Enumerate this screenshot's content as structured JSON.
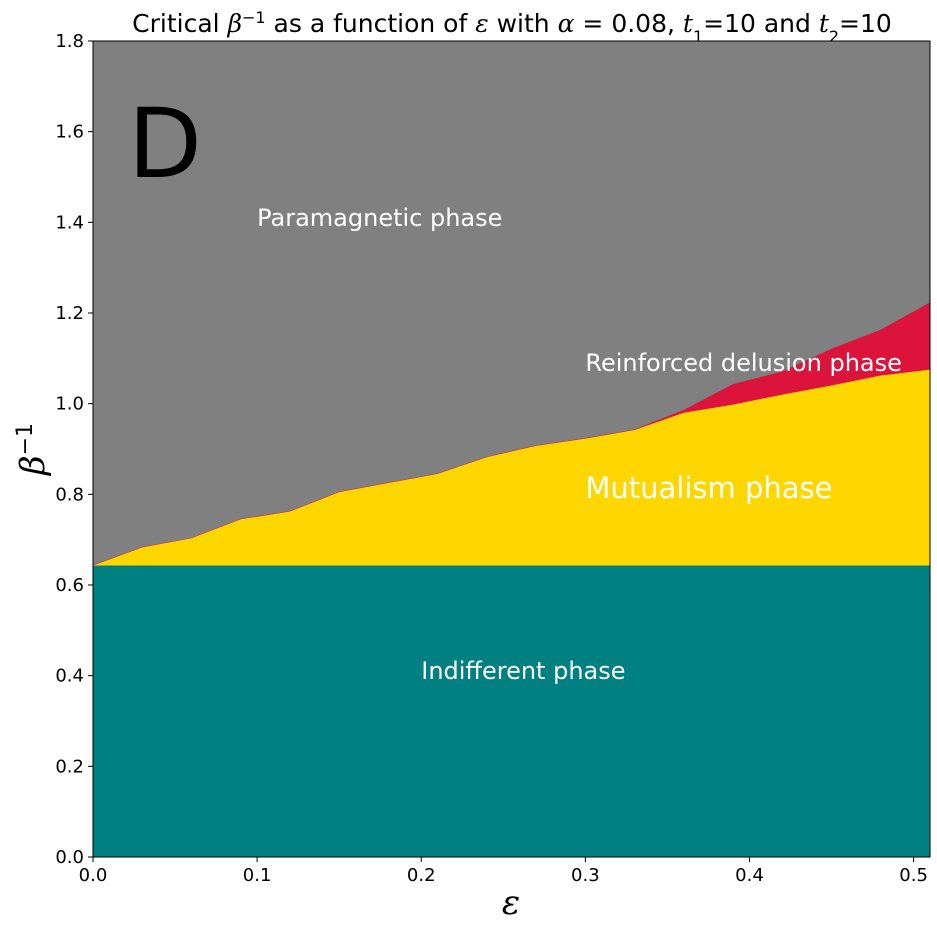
{
  "chart_data": {
    "type": "area",
    "title": "Critical β⁻¹ as a function of ε with α = 0.08, t₁=10 and t₂=10",
    "panel_label": "D",
    "xlabel": "ε",
    "ylabel": "β⁻¹",
    "xlim": [
      0.0,
      0.51
    ],
    "ylim": [
      0.0,
      1.8
    ],
    "xticks": [
      0.0,
      0.1,
      0.2,
      0.3,
      0.4,
      0.5
    ],
    "yticks": [
      0.0,
      0.2,
      0.4,
      0.6,
      0.8,
      1.0,
      1.2,
      1.4,
      1.6,
      1.8
    ],
    "xtick_labels": [
      "0.0",
      "0.1",
      "0.2",
      "0.3",
      "0.4",
      "0.5"
    ],
    "ytick_labels": [
      "0.0",
      "0.2",
      "0.4",
      "0.6",
      "0.8",
      "1.0",
      "1.2",
      "1.4",
      "1.6",
      "1.8"
    ],
    "grid": false,
    "series": [
      {
        "region": "indifferent",
        "color": "#008080",
        "x": [
          0.0,
          0.51
        ],
        "y_lower": [
          0.0,
          0.0
        ],
        "y_upper": [
          0.643,
          0.643
        ]
      },
      {
        "region": "mutualism",
        "color": "#FFD700",
        "x": [
          0.0,
          0.03,
          0.06,
          0.09,
          0.12,
          0.15,
          0.18,
          0.21,
          0.24,
          0.27,
          0.3,
          0.33,
          0.36,
          0.39,
          0.42,
          0.45,
          0.48,
          0.51
        ],
        "y_lower": [
          0.643,
          0.643,
          0.643,
          0.643,
          0.643,
          0.643,
          0.643,
          0.643,
          0.643,
          0.643,
          0.643,
          0.643,
          0.643,
          0.643,
          0.643,
          0.643,
          0.643,
          0.643
        ],
        "y_upper": [
          0.643,
          0.683,
          0.703,
          0.745,
          0.762,
          0.805,
          0.825,
          0.845,
          0.882,
          0.907,
          0.923,
          0.942,
          0.98,
          0.998,
          1.02,
          1.04,
          1.062,
          1.075
        ]
      },
      {
        "region": "reinforced_delusion",
        "color": "#DC143C",
        "x": [
          0.0,
          0.03,
          0.06,
          0.09,
          0.12,
          0.15,
          0.18,
          0.21,
          0.24,
          0.27,
          0.3,
          0.33,
          0.36,
          0.39,
          0.42,
          0.45,
          0.48,
          0.51
        ],
        "y_lower": [
          0.643,
          0.683,
          0.703,
          0.745,
          0.762,
          0.805,
          0.825,
          0.845,
          0.882,
          0.907,
          0.923,
          0.942,
          0.98,
          0.998,
          1.02,
          1.04,
          1.062,
          1.075
        ],
        "y_upper": [
          0.643,
          0.683,
          0.703,
          0.745,
          0.762,
          0.805,
          0.825,
          0.845,
          0.882,
          0.907,
          0.923,
          0.942,
          0.985,
          1.042,
          1.07,
          1.12,
          1.162,
          1.222
        ]
      },
      {
        "region": "paramagnetic",
        "color": "#808080",
        "x": [
          0.0,
          0.51
        ],
        "y_lower": [
          0.0,
          0.0
        ],
        "y_upper": [
          1.8,
          1.8
        ]
      }
    ],
    "annotations": [
      {
        "text": "Paramagnetic phase",
        "x": 0.1,
        "y": 1.41,
        "color": "#ffffff",
        "size": "medium"
      },
      {
        "text": "Reinforced delusion phase",
        "x": 0.3,
        "y": 1.09,
        "color": "#ffffff",
        "size": "medium"
      },
      {
        "text": "Mutualism phase",
        "x": 0.3,
        "y": 0.81,
        "color": "#ffffff",
        "size": "large"
      },
      {
        "text": "Indifferent phase",
        "x": 0.2,
        "y": 0.41,
        "color": "#ffffff",
        "size": "medium"
      }
    ]
  }
}
